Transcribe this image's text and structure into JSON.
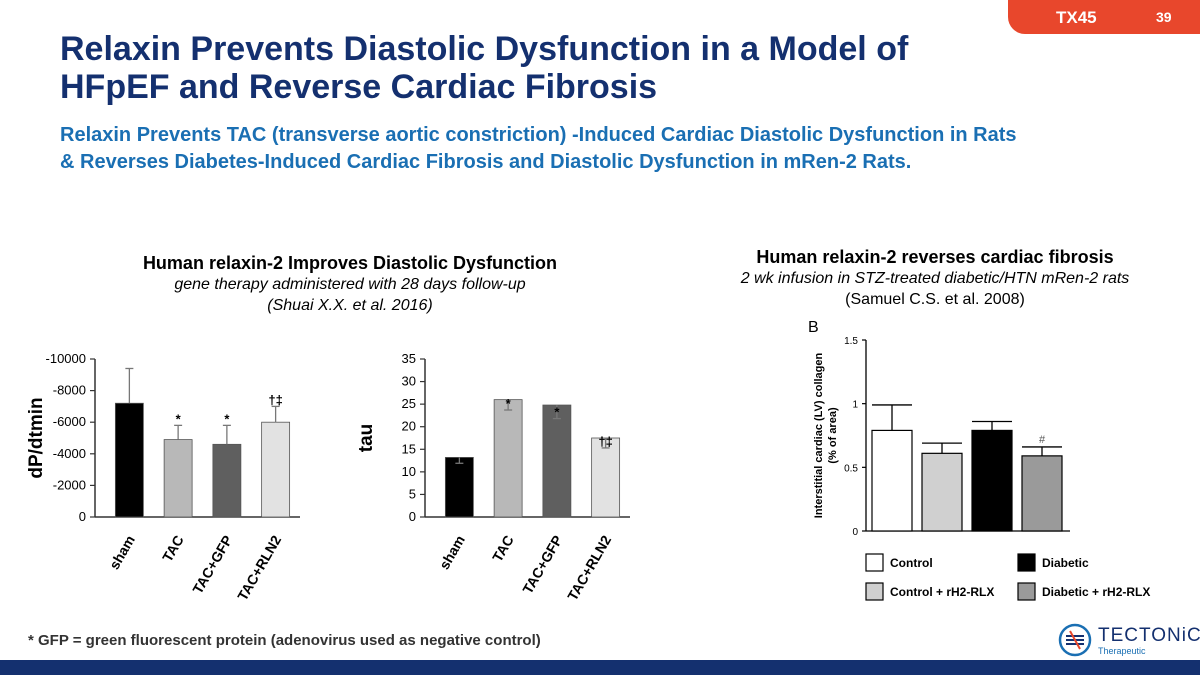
{
  "slide": {
    "badge_code": "TX45",
    "slide_number": "39",
    "title_line1": "Relaxin Prevents Diastolic Dysfunction in a Model of",
    "title_line2": "HFpEF and Reverse Cardiac Fibrosis",
    "subtitle_line1": "Relaxin Prevents TAC (transverse aortic constriction) -Induced Cardiac Diastolic Dysfunction in Rats",
    "subtitle_line2": "& Reverses Diabetes-Induced Cardiac Fibrosis and Diastolic Dysfunction in mRen-2 Rats.",
    "footnote": "* GFP = green fluorescent protein (adenovirus used as negative control)",
    "logo_word": "TECTONiC",
    "logo_sub": "Therapeutic",
    "colors": {
      "navy": "#14306f",
      "blue": "#1a6fb3",
      "orange": "#e8472c"
    }
  },
  "panel_left": {
    "heading": "Human relaxin-2 Improves Diastolic Dysfunction",
    "detail": "gene therapy administered with 28 days follow-up",
    "reference": "(Shuai X.X. et al.  2016)"
  },
  "panel_right": {
    "heading": "Human relaxin-2 reverses cardiac fibrosis",
    "detail": "2 wk infusion in STZ-treated diabetic/HTN mRen-2 rats",
    "reference": "(Samuel C.S. et al. 2008)"
  },
  "chart_data": [
    {
      "type": "bar",
      "title": "",
      "ylabel": "dP/dtmin",
      "categories": [
        "sham",
        "TAC",
        "TAC+GFP",
        "TAC+RLN2"
      ],
      "values": [
        -7200,
        -4900,
        -4600,
        -6000
      ],
      "errors": [
        2200,
        900,
        1200,
        1000
      ],
      "annotations": [
        "",
        "*",
        "*",
        "†‡"
      ],
      "colors": [
        "#000000",
        "#b8b8b8",
        "#5f5f5f",
        "#e2e2e2"
      ],
      "ylim": [
        0,
        -10000
      ],
      "ticks": [
        0,
        -2000,
        -4000,
        -6000,
        -8000,
        -10000
      ],
      "tick_labels": [
        "0",
        "-2000",
        "-4000",
        "-6000",
        "-8000",
        "-10000"
      ]
    },
    {
      "type": "bar",
      "title": "",
      "ylabel": "tau",
      "categories": [
        "sham",
        "TAC",
        "TAC+GFP",
        "TAC+RLN2"
      ],
      "values": [
        13.2,
        26,
        24.8,
        17.5
      ],
      "errors": [
        1.3,
        2.3,
        3,
        2.2
      ],
      "annotations": [
        "",
        "*",
        "*",
        "†‡"
      ],
      "colors": [
        "#000000",
        "#b8b8b8",
        "#5f5f5f",
        "#e2e2e2"
      ],
      "ylim": [
        0,
        35
      ],
      "ticks": [
        0,
        5,
        10,
        15,
        20,
        25,
        30,
        35
      ],
      "tick_labels": [
        "0",
        "5",
        "10",
        "15",
        "20",
        "25",
        "30",
        "35"
      ]
    },
    {
      "type": "bar",
      "panel_label": "B",
      "title": "",
      "ylabel_line1": "Interstitial cardiac (LV) collagen",
      "ylabel_line2": "(% of area)",
      "series": [
        {
          "name": "Control",
          "value": 0.79,
          "error": 0.2,
          "color": "#ffffff",
          "annotation": ""
        },
        {
          "name": "Control + rH2-RLX",
          "value": 0.61,
          "error": 0.08,
          "color": "#d0d0d0",
          "annotation": ""
        },
        {
          "name": "Diabetic",
          "value": 0.79,
          "error": 0.07,
          "color": "#000000",
          "annotation": ""
        },
        {
          "name": "Diabetic + rH2-RLX",
          "value": 0.59,
          "error": 0.07,
          "color": "#9a9a9a",
          "annotation": "#"
        }
      ],
      "ylim": [
        0,
        1.5
      ],
      "ticks": [
        0,
        0.5,
        1,
        1.5
      ],
      "tick_labels": [
        "0",
        "0.5",
        "1",
        "1.5"
      ],
      "legend_position": "bottom"
    }
  ]
}
